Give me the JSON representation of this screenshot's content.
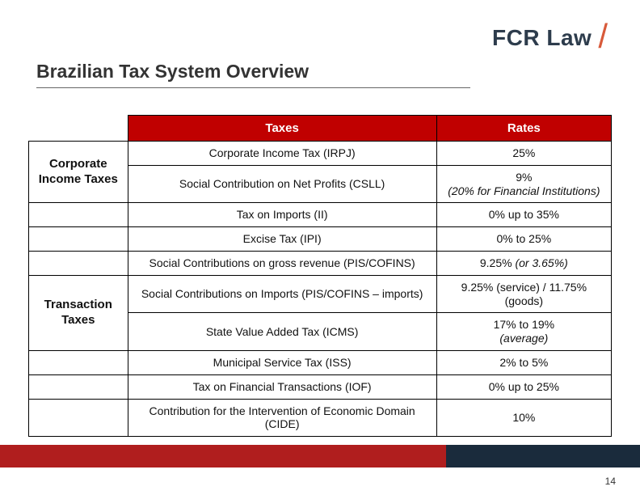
{
  "logo": {
    "text": "FCR Law",
    "slash": "/"
  },
  "title": "Brazilian Tax System Overview",
  "header": {
    "taxes": "Taxes",
    "rates": "Rates"
  },
  "cat": {
    "corp": "Corporate Income Taxes",
    "trans": "Transaction Taxes"
  },
  "rows": {
    "irpj": {
      "tax": "Corporate Income Tax (IRPJ)",
      "rate": "25%"
    },
    "csll": {
      "tax": "Social Contribution on Net Profits (CSLL)",
      "rate_l1": "9%",
      "rate_l2": "(20% for Financial Institutions)"
    },
    "ii": {
      "tax": "Tax on Imports (II)",
      "rate": "0% up to 35%"
    },
    "ipi": {
      "tax": "Excise Tax (IPI)",
      "rate": "0% to 25%"
    },
    "pis": {
      "tax": "Social Contributions on gross revenue (PIS/COFINS)",
      "rate_a": "9.25% ",
      "rate_b": "(or 3.65%)"
    },
    "pisim": {
      "tax": "Social Contributions on Imports (PIS/COFINS – imports)",
      "rate": "9.25% (service) / 11.75% (goods)"
    },
    "icms": {
      "tax": "State Value Added Tax (ICMS)",
      "rate_l1": "17% to 19%",
      "rate_l2": "(average)"
    },
    "iss": {
      "tax": "Municipal Service Tax (ISS)",
      "rate": "2% to 5%"
    },
    "iof": {
      "tax": "Tax on Financial Transactions (IOF)",
      "rate": "0% up to 25%"
    },
    "cide": {
      "tax": "Contribution for the Intervention of Economic Domain (CIDE)",
      "rate": "10%"
    }
  },
  "pageNumber": "14",
  "colors": {
    "header_bg": "#c00000",
    "header_fg": "#ffffff",
    "border": "#000000",
    "footer_red": "#b01e1e",
    "footer_navy": "#1a2b3c",
    "logo_navy": "#2d3c4c",
    "logo_orange": "#d85a3a"
  }
}
